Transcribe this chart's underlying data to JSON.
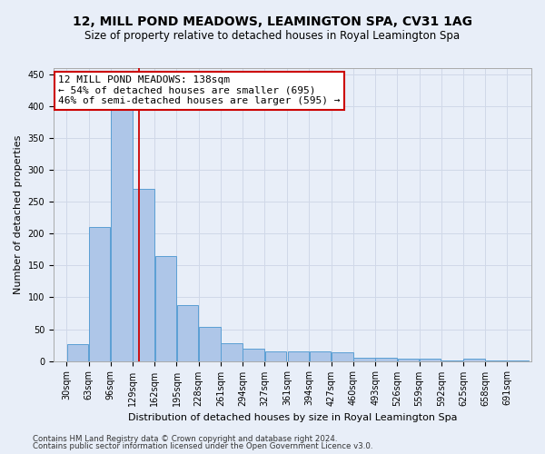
{
  "title": "12, MILL POND MEADOWS, LEAMINGTON SPA, CV31 1AG",
  "subtitle": "Size of property relative to detached houses in Royal Leamington Spa",
  "xlabel": "Distribution of detached houses by size in Royal Leamington Spa",
  "ylabel": "Number of detached properties",
  "footnote1": "Contains HM Land Registry data © Crown copyright and database right 2024.",
  "footnote2": "Contains public sector information licensed under the Open Government Licence v3.0.",
  "bar_edges": [
    30,
    63,
    96,
    129,
    162,
    195,
    228,
    261,
    294,
    327,
    361,
    394,
    427,
    460,
    493,
    526,
    559,
    592,
    625,
    658,
    691,
    724
  ],
  "bar_heights": [
    27,
    210,
    395,
    270,
    165,
    88,
    53,
    28,
    20,
    15,
    15,
    15,
    14,
    5,
    5,
    3,
    3,
    1,
    3,
    1,
    1
  ],
  "bar_color": "#aec6e8",
  "bar_edge_color": "#5a9fd4",
  "property_size": 138,
  "vline_color": "#cc0000",
  "annotation_line1": "12 MILL POND MEADOWS: 138sqm",
  "annotation_line2": "← 54% of detached houses are smaller (695)",
  "annotation_line3": "46% of semi-detached houses are larger (595) →",
  "annotation_box_color": "#ffffff",
  "annotation_border_color": "#cc0000",
  "ylim": [
    0,
    460
  ],
  "yticks": [
    0,
    50,
    100,
    150,
    200,
    250,
    300,
    350,
    400,
    450
  ],
  "tick_labels": [
    "30sqm",
    "63sqm",
    "96sqm",
    "129sqm",
    "162sqm",
    "195sqm",
    "228sqm",
    "261sqm",
    "294sqm",
    "327sqm",
    "361sqm",
    "394sqm",
    "427sqm",
    "460sqm",
    "493sqm",
    "526sqm",
    "559sqm",
    "592sqm",
    "625sqm",
    "658sqm",
    "691sqm"
  ],
  "grid_color": "#d0d8e8",
  "bg_color": "#e8eef8",
  "title_fontsize": 10,
  "subtitle_fontsize": 8.5,
  "ylabel_fontsize": 8,
  "xlabel_fontsize": 8,
  "tick_fontsize": 7,
  "annotation_fontsize": 8
}
